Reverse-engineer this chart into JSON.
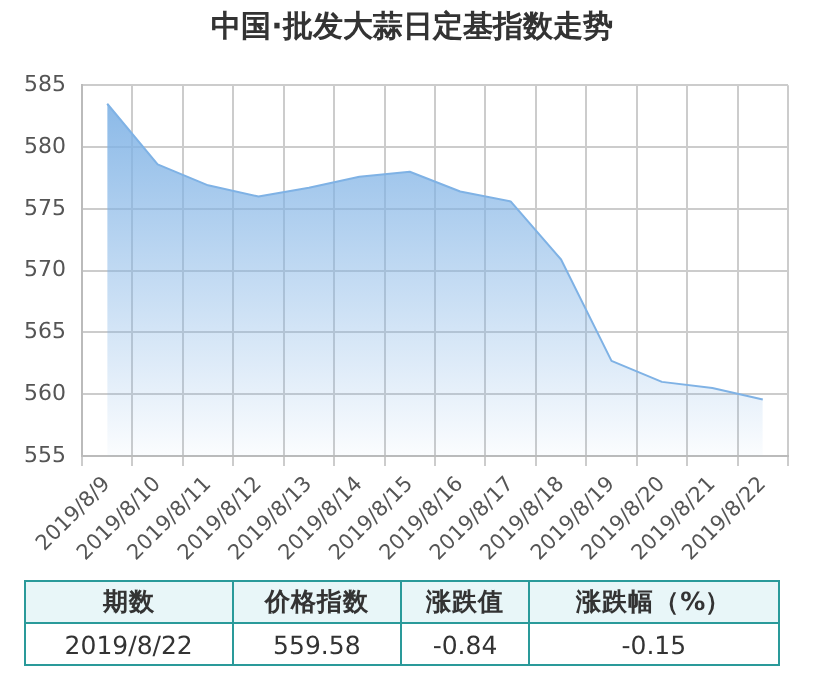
{
  "chart_data": {
    "type": "area",
    "title": "中国·批发大蒜日定基指数走势",
    "categories": [
      "2019/8/9",
      "2019/8/10",
      "2019/8/11",
      "2019/8/12",
      "2019/8/13",
      "2019/8/14",
      "2019/8/15",
      "2019/8/16",
      "2019/8/17",
      "2019/8/18",
      "2019/8/19",
      "2019/8/20",
      "2019/8/21",
      "2019/8/22"
    ],
    "series": [
      {
        "color": "#7fb2e5",
        "values": [
          583.5,
          578.6,
          576.9,
          576.0,
          576.7,
          577.6,
          578.0,
          576.4,
          575.6,
          570.9,
          562.7,
          561.0,
          560.5,
          559.58
        ]
      }
    ],
    "ylim": [
      555,
      585
    ],
    "yticks": [
      555,
      560,
      565,
      570,
      575,
      580,
      585
    ],
    "grid": true,
    "marker": "none",
    "annotations": [
      "期数",
      "价格指数",
      "涨跌值",
      "涨跌幅（%）",
      "2019/8/22",
      "559.58",
      "-0.84",
      "-0.15"
    ]
  }
}
